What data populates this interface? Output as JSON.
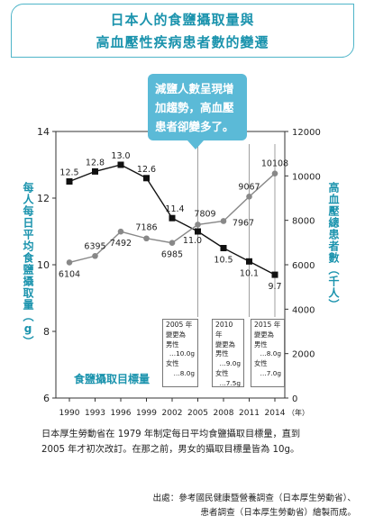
{
  "title": {
    "line1": "日本人的食鹽攝取量與",
    "line2": "高血壓性疾病患者數的變遷"
  },
  "callout": "減鹽人數呈現增加趨勢，高血壓患者卻變多了。",
  "chart_data": {
    "type": "line",
    "x": [
      1990,
      1993,
      1996,
      1999,
      2002,
      2005,
      2008,
      2011,
      2014
    ],
    "xlabel": "（年）",
    "ylabel_left": "每人每日平均食鹽攝取量（g）",
    "ylabel_right": "高血壓總患者數（千人）",
    "ylim_left": [
      6,
      14
    ],
    "yticks_left": [
      "6",
      "8",
      "10",
      "12",
      "14"
    ],
    "ylim_right": [
      0,
      12000
    ],
    "yticks_right": [
      "0",
      "2000",
      "4000",
      "6000",
      "8000",
      "10000",
      "12000"
    ],
    "series": [
      {
        "axis": "left",
        "marker": "square",
        "color": "#111111",
        "values": [
          12.5,
          12.8,
          13.0,
          12.6,
          11.4,
          11.0,
          10.5,
          10.1,
          9.7
        ],
        "labels": [
          "12.5",
          "12.8",
          "13.0",
          "12.6",
          "11.4",
          "11.0",
          "10.5",
          "10.1",
          "9.7"
        ]
      },
      {
        "axis": "right",
        "marker": "circle",
        "color": "#888888",
        "values": [
          6104,
          6395,
          7492,
          7186,
          6985,
          7809,
          7967,
          9067,
          10108
        ],
        "labels": [
          "6104",
          "6395",
          "7492",
          "7186",
          "6985",
          "7809",
          "7967",
          "9067",
          "10108"
        ]
      }
    ],
    "target_label": "食鹽攝取目標量",
    "standards": [
      {
        "year": "2005 年",
        "head": "變更為",
        "male": "男性",
        "male_val": "…10.0g",
        "female": "女性",
        "female_val": "…8.0g"
      },
      {
        "year": "2010 年",
        "head": "變更為",
        "male": "男性",
        "male_val": "…9.0g",
        "female": "女性",
        "female_val": "…7.5g"
      },
      {
        "year": "2015 年",
        "head": "變更為",
        "male": "男性",
        "male_val": "…8.0g",
        "female": "女性",
        "female_val": "…7.0g"
      }
    ]
  },
  "note": "日本厚生勞動省在 1979 年制定每日平均食鹽攝取目標量，直到 2005 年才初次改訂。在那之前，男女的攝取目標量皆為 10g。",
  "source": {
    "line1": "出處：參考國民健康暨營養調查（日本厚生勞動省）、",
    "line2": "患者調查（日本厚生勞動省）繪製而成。"
  },
  "colors": {
    "accent": "#1a93ad",
    "callout": "#5bbad7",
    "salt_line": "#111111",
    "patient_line": "#888888"
  }
}
